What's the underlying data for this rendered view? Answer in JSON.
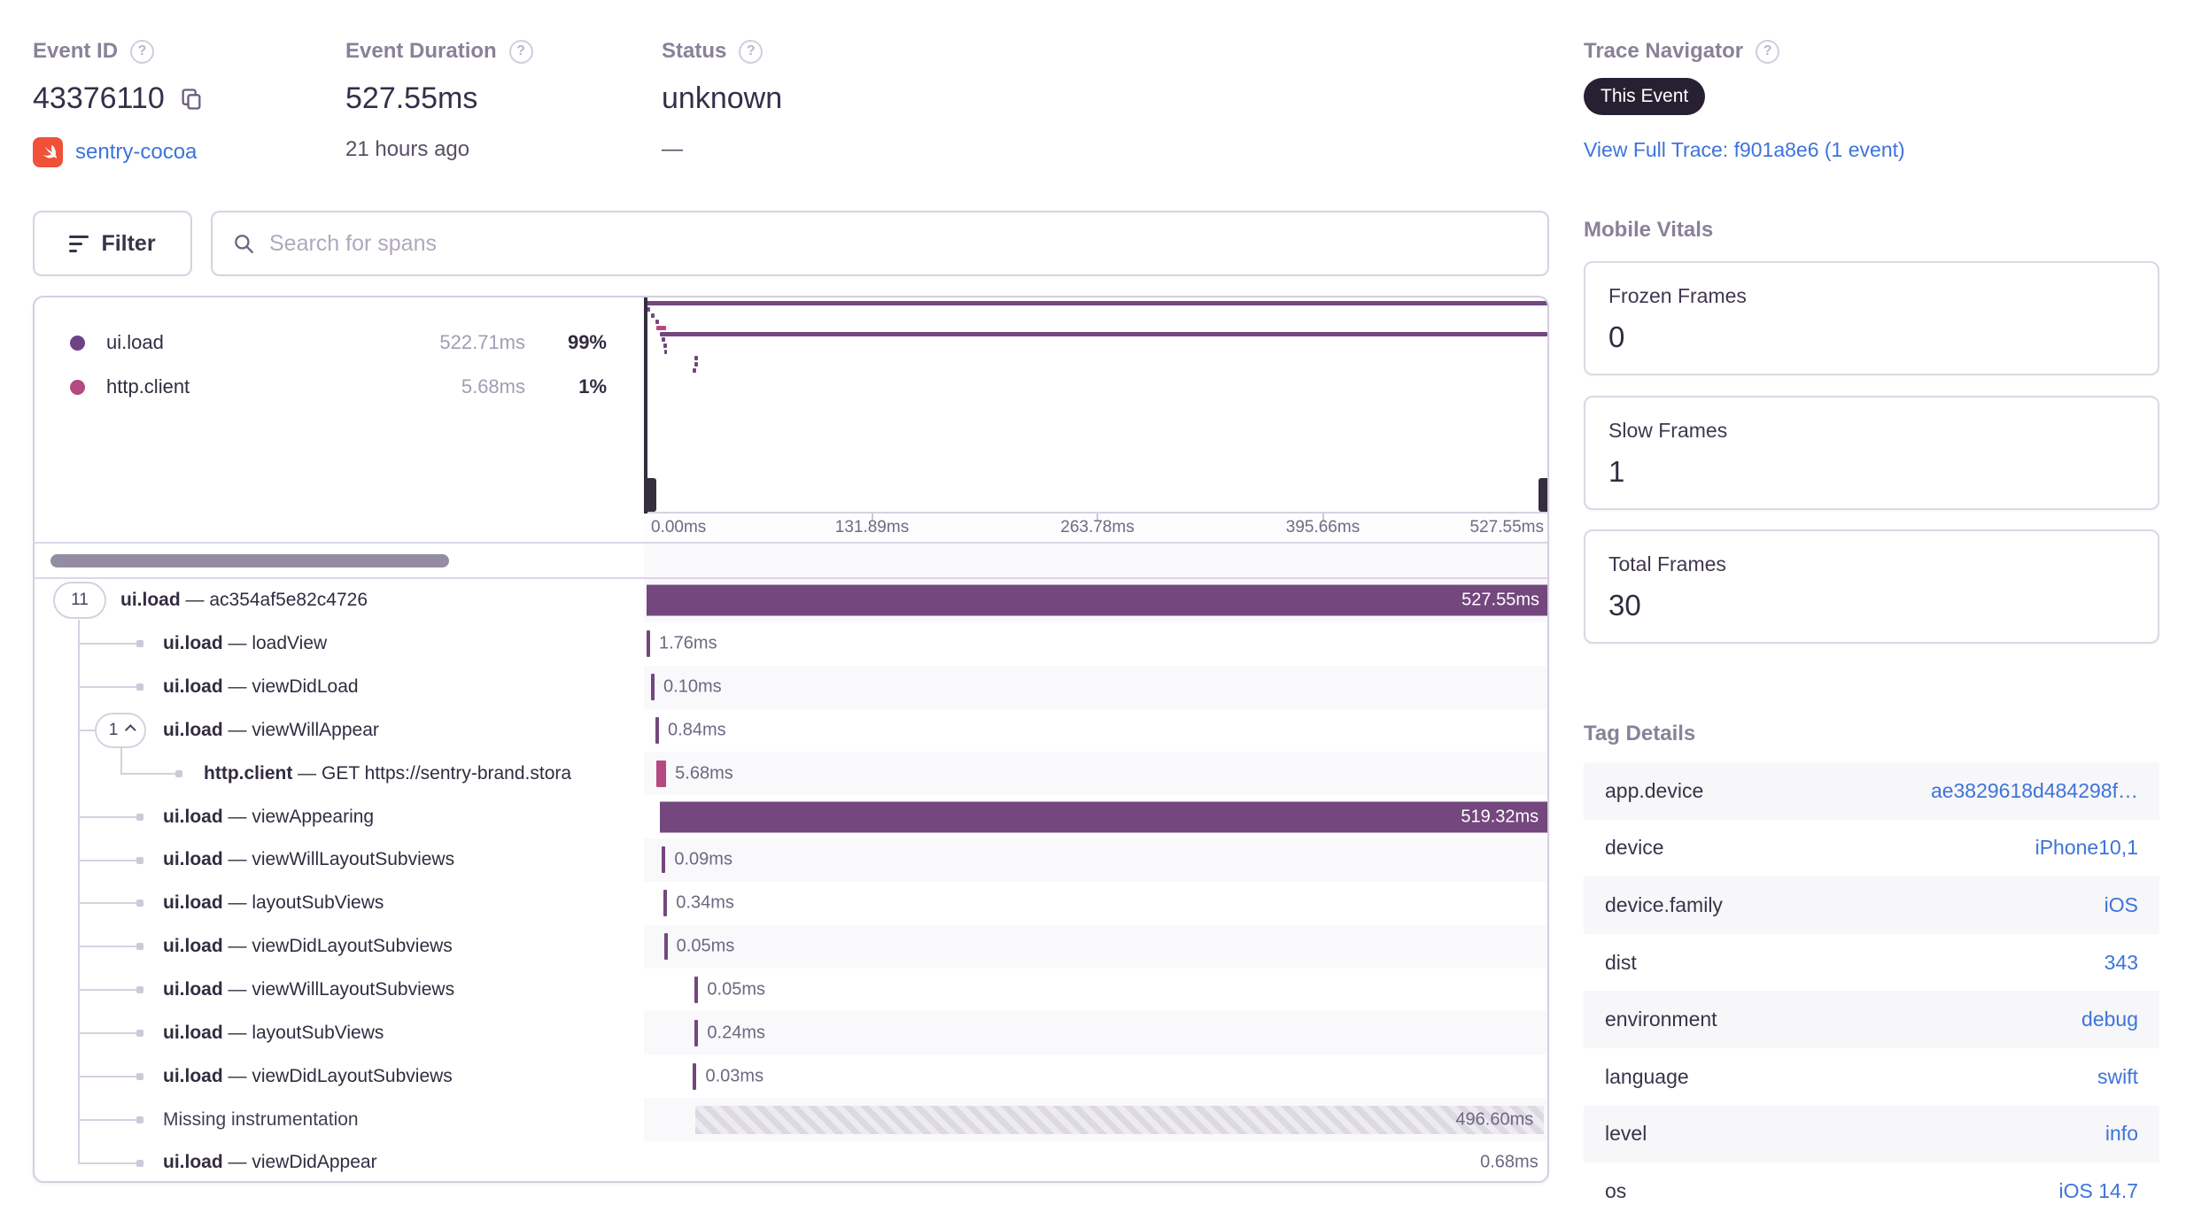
{
  "header": {
    "event_id": {
      "label": "Event ID",
      "value": "43376110",
      "project": "sentry-cocoa"
    },
    "duration": {
      "label": "Event Duration",
      "value": "527.55ms",
      "age": "21 hours ago"
    },
    "status": {
      "label": "Status",
      "value": "unknown",
      "sub": "—"
    },
    "trace_navigator": {
      "label": "Trace Navigator",
      "badge": "This Event",
      "link": "View Full Trace: f901a8e6 (1 event)"
    }
  },
  "toolbar": {
    "filter": "Filter",
    "search_placeholder": "Search for spans"
  },
  "legend": [
    {
      "op": "ui.load",
      "duration": "522.71ms",
      "percent": "99%",
      "color": "#6E4385"
    },
    {
      "op": "http.client",
      "duration": "5.68ms",
      "percent": "1%",
      "color": "#B34A80"
    }
  ],
  "timeline": {
    "total_ms": 527.55,
    "ticks": [
      "0.00ms",
      "131.89ms",
      "263.78ms",
      "395.66ms",
      "527.55ms"
    ]
  },
  "spans": [
    {
      "op": "ui.load",
      "desc": "ac354af5e82c4726",
      "badge": "11",
      "depth": 0,
      "start_ms": 0,
      "duration_ms": 527.55,
      "duration_label": "527.55ms",
      "render": "bar",
      "color": "purple",
      "label_pos": "inside"
    },
    {
      "op": "ui.load",
      "desc": "loadView",
      "depth": 1,
      "start_ms": 0,
      "duration_ms": 1.76,
      "duration_label": "1.76ms",
      "render": "tick",
      "color": "purple",
      "label_pos": "right"
    },
    {
      "op": "ui.load",
      "desc": "viewDidLoad",
      "depth": 1,
      "start_ms": 2.6,
      "duration_ms": 0.1,
      "duration_label": "0.10ms",
      "render": "tick",
      "color": "purple",
      "label_pos": "right"
    },
    {
      "op": "ui.load",
      "desc": "viewWillAppear",
      "badge": "1",
      "badge_caret": true,
      "depth": 1,
      "start_ms": 5.2,
      "duration_ms": 0.84,
      "duration_label": "0.84ms",
      "render": "tick",
      "color": "purple",
      "label_pos": "right"
    },
    {
      "op": "http.client",
      "desc": "GET https://sentry-brand.stora",
      "depth": 2,
      "start_ms": 5.8,
      "duration_ms": 5.68,
      "duration_label": "5.68ms",
      "render": "tick",
      "color": "pink",
      "label_pos": "right"
    },
    {
      "op": "ui.load",
      "desc": "viewAppearing",
      "depth": 1,
      "start_ms": 7.8,
      "duration_ms": 519.32,
      "duration_label": "519.32ms",
      "render": "bar",
      "color": "purple",
      "label_pos": "inside"
    },
    {
      "op": "ui.load",
      "desc": "viewWillLayoutSubviews",
      "depth": 1,
      "start_ms": 9.0,
      "duration_ms": 0.09,
      "duration_label": "0.09ms",
      "render": "tick",
      "color": "purple",
      "label_pos": "right"
    },
    {
      "op": "ui.load",
      "desc": "layoutSubViews",
      "depth": 1,
      "start_ms": 10.0,
      "duration_ms": 0.34,
      "duration_label": "0.34ms",
      "render": "tick",
      "color": "purple",
      "label_pos": "right"
    },
    {
      "op": "ui.load",
      "desc": "viewDidLayoutSubviews",
      "depth": 1,
      "start_ms": 10.2,
      "duration_ms": 0.05,
      "duration_label": "0.05ms",
      "render": "tick",
      "color": "purple",
      "label_pos": "right"
    },
    {
      "op": "ui.load",
      "desc": "viewWillLayoutSubviews",
      "depth": 1,
      "start_ms": 28.2,
      "duration_ms": 0.05,
      "duration_label": "0.05ms",
      "render": "tick",
      "color": "purple",
      "label_pos": "right"
    },
    {
      "op": "ui.load",
      "desc": "layoutSubViews",
      "depth": 1,
      "start_ms": 28.2,
      "duration_ms": 0.24,
      "duration_label": "0.24ms",
      "render": "tick",
      "color": "purple",
      "label_pos": "right"
    },
    {
      "op": "ui.load",
      "desc": "viewDidLayoutSubviews",
      "depth": 1,
      "start_ms": 27.2,
      "duration_ms": 0.03,
      "duration_label": "0.03ms",
      "render": "tick",
      "color": "purple",
      "label_pos": "right"
    },
    {
      "label": "Missing instrumentation",
      "depth": 1,
      "start_ms": 28.5,
      "duration_ms": 496.6,
      "duration_label": "496.60ms",
      "render": "hatched",
      "label_pos": "inside-gray"
    },
    {
      "op": "ui.load",
      "desc": "viewDidAppear",
      "depth": 1,
      "start_ms": 526.87,
      "duration_ms": 0.68,
      "duration_label": "0.68ms",
      "render": "tick",
      "color": "purple",
      "label_pos": "left"
    }
  ],
  "mobile_vitals": {
    "title": "Mobile Vitals",
    "cards": [
      {
        "label": "Frozen Frames",
        "value": "0"
      },
      {
        "label": "Slow Frames",
        "value": "1"
      },
      {
        "label": "Total Frames",
        "value": "30"
      }
    ]
  },
  "tag_details": {
    "title": "Tag Details",
    "rows": [
      {
        "key": "app.device",
        "value": "ae3829618d484298f…"
      },
      {
        "key": "device",
        "value": "iPhone10,1"
      },
      {
        "key": "device.family",
        "value": "iOS"
      },
      {
        "key": "dist",
        "value": "343"
      },
      {
        "key": "environment",
        "value": "debug"
      },
      {
        "key": "language",
        "value": "swift"
      },
      {
        "key": "level",
        "value": "info"
      },
      {
        "key": "os",
        "value": "iOS 14.7"
      }
    ]
  },
  "colors": {
    "span_purple": "#74477E",
    "span_pink": "#B34A80",
    "link_blue": "#3D74DB",
    "badge_bg": "#272033",
    "swift_orange": "#F05138",
    "minimap_handle": "#352E3E"
  }
}
